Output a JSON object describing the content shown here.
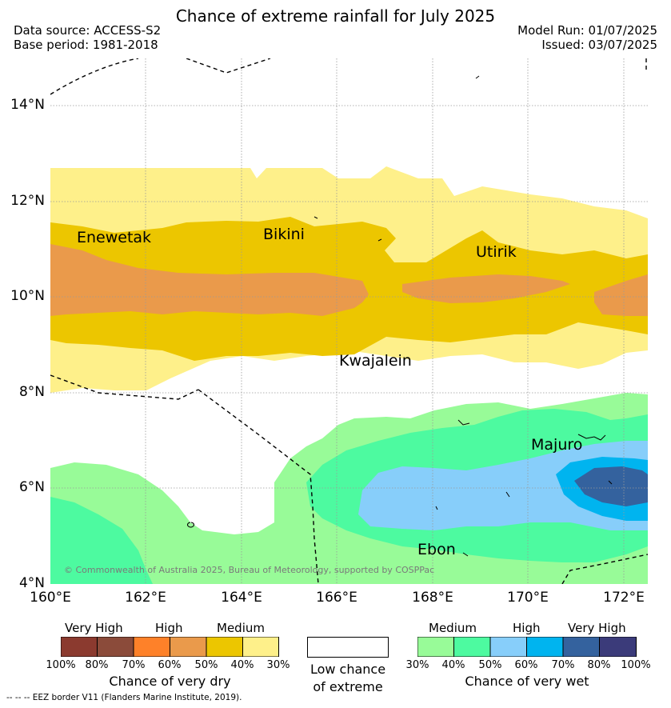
{
  "title": "Chance of extreme rainfall for July 2025",
  "header": {
    "data_source": "Data source: ACCESS-S2",
    "base_period": "Base period: 1981-2018",
    "model_run": "Model Run: 01/07/2025",
    "issued": "Issued: 03/07/2025"
  },
  "axes": {
    "lat_labels": [
      "14°N",
      "12°N",
      "10°N",
      "8°N",
      "6°N",
      "4°N"
    ],
    "lon_labels": [
      "160°E",
      "162°E",
      "164°E",
      "166°E",
      "168°E",
      "170°E",
      "172°E"
    ]
  },
  "places": {
    "enewetak": "Enewetak",
    "bikini": "Bikini",
    "utirik": "Utirik",
    "kwajalein": "Kwajalein",
    "majuro": "Majuro",
    "ebon": "Ebon"
  },
  "copyright": "© Commonwealth of Australia 2025, Bureau of Meteorology, supported by COSPPac",
  "legend": {
    "dry": {
      "headers": [
        "Very High",
        "High",
        "Medium"
      ],
      "ticks": [
        "100%",
        "80%",
        "70%",
        "60%",
        "50%",
        "40%",
        "30%"
      ],
      "colors": [
        "#8b3a2f",
        "#8b4b3a",
        "#fe8129",
        "#ea9a4b",
        "#ecc600",
        "#fef08a"
      ],
      "title": "Chance of very dry"
    },
    "low": {
      "line1": "Low chance",
      "line2": "of extreme",
      "color": "#ffffff"
    },
    "wet": {
      "headers": [
        "Medium",
        "High",
        "Very High"
      ],
      "ticks": [
        "30%",
        "40%",
        "50%",
        "60%",
        "70%",
        "80%",
        "100%"
      ],
      "colors": [
        "#98fb98",
        "#4dfaa0",
        "#87cefa",
        "#00b4ef",
        "#34629e",
        "#3b3b7a"
      ],
      "title": "Chance of very wet"
    }
  },
  "footnote": "--  --  -- EEZ border V11 (Flanders Marine Institute, 2019)."
}
